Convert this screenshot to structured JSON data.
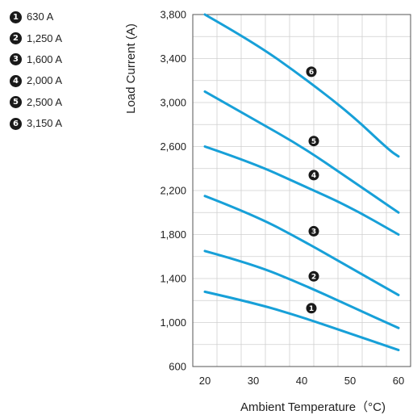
{
  "chart_data": {
    "type": "line",
    "xlabel": "Ambient Temperature（°C)",
    "ylabel": "Load Current (A)",
    "xlim": [
      17.5,
      62.5
    ],
    "ylim": [
      600,
      3800
    ],
    "x_ticks": [
      20,
      30,
      40,
      50,
      60
    ],
    "y_ticks": [
      600,
      1000,
      1400,
      1800,
      2200,
      2600,
      3000,
      3400,
      3800
    ],
    "y_tick_labels": [
      "600",
      "1,000",
      "1,400",
      "1,800",
      "2,200",
      "2,600",
      "3,000",
      "3,400",
      "3,800"
    ],
    "grid": true,
    "legend_position": "top-left",
    "series_color": "#17a0d8",
    "series": [
      {
        "name": "630 A",
        "marker": "1",
        "x": [
          20,
          30,
          40,
          50,
          60
        ],
        "y": [
          1280,
          1180,
          1050,
          900,
          750
        ],
        "marker_at": [
          42,
          1130
        ]
      },
      {
        "name": "1,250 A",
        "marker": "2",
        "x": [
          20,
          30,
          40,
          50,
          60
        ],
        "y": [
          1650,
          1530,
          1350,
          1150,
          950
        ],
        "marker_at": [
          42.5,
          1420
        ]
      },
      {
        "name": "1,600 A",
        "marker": "3",
        "x": [
          20,
          30,
          40,
          50,
          60
        ],
        "y": [
          2150,
          1980,
          1750,
          1500,
          1250
        ],
        "marker_at": [
          42.5,
          1830
        ]
      },
      {
        "name": "2,000 A",
        "marker": "4",
        "x": [
          20,
          30,
          40,
          50,
          60
        ],
        "y": [
          2600,
          2450,
          2250,
          2050,
          1800
        ],
        "marker_at": [
          42.5,
          2340
        ]
      },
      {
        "name": "2,500 A",
        "marker": "5",
        "x": [
          20,
          30,
          40,
          50,
          60
        ],
        "y": [
          3100,
          2850,
          2600,
          2300,
          2000
        ],
        "marker_at": [
          42.5,
          2650
        ]
      },
      {
        "name": "3,150 A",
        "marker": "6",
        "x": [
          20,
          30,
          40,
          50,
          58,
          60
        ],
        "y": [
          3800,
          3550,
          3240,
          2900,
          2570,
          2510
        ],
        "marker_at": [
          42,
          3280
        ]
      }
    ]
  }
}
